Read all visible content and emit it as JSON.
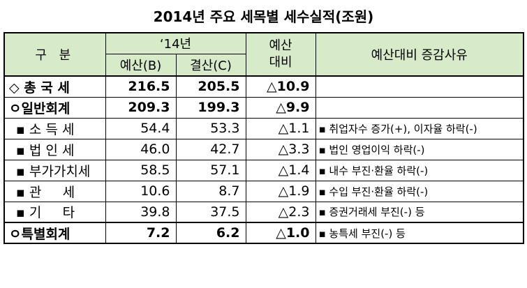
{
  "title": "2014년 주요 세목별 세수실적(조원)",
  "headers": {
    "category": "구    분",
    "year": "‘14년",
    "budget": "예산(B)",
    "settlement": "결산(C)",
    "vs_budget": "예산\n대비",
    "reason": "예산대비 증감사유"
  },
  "rows": [
    {
      "category": "◇ 총 국 세",
      "budget": "216.5",
      "settlement": "205.5",
      "diff": "△10.9",
      "reason": ""
    },
    {
      "category": "ㅇ일반회계",
      "budget": "209.3",
      "settlement": "199.3",
      "diff": "△9.9",
      "reason": ""
    },
    {
      "category": "▪ 소 득 세",
      "budget": "54.4",
      "settlement": "53.3",
      "diff": "△1.1",
      "reason": "▪ 취업자수 증가(+), 이자율 하락(-)"
    },
    {
      "category": "▪ 법 인 세",
      "budget": "46.0",
      "settlement": "42.7",
      "diff": "△3.3",
      "reason": "▪ 법인 영업이익 하락(-)"
    },
    {
      "category": "▪ 부가가치세",
      "budget": "58.5",
      "settlement": "57.1",
      "diff": "△1.4",
      "reason": "▪ 내수 부진·환율 하락(-)"
    },
    {
      "category": "▪ 관     세",
      "budget": "10.6",
      "settlement": "8.7",
      "diff": "△1.9",
      "reason": "▪ 수입 부진·환율 하락(-)"
    },
    {
      "category": "▪ 기     타",
      "budget": "39.8",
      "settlement": "37.5",
      "diff": "△2.3",
      "reason": "▪ 증권거래세 부진(-) 등"
    },
    {
      "category": "ㅇ특별회계",
      "budget": "7.2",
      "settlement": "6.2",
      "diff": "△1.0",
      "reason": "▪ 농특세 부진(-) 등"
    }
  ]
}
